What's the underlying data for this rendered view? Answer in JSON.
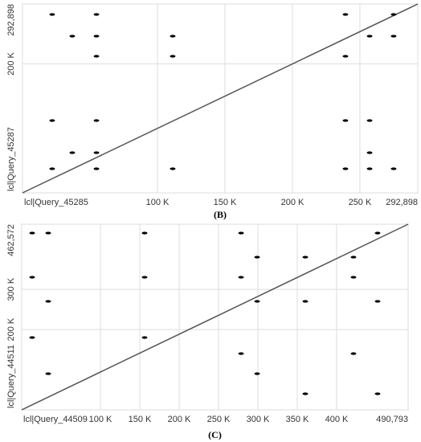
{
  "chart_data": [
    {
      "type": "scatter",
      "caption": "(B)",
      "xlim": [
        0,
        292898
      ],
      "ylim": [
        0,
        292898
      ],
      "xticks": [
        {
          "value": 0,
          "label": "lcl|Query_45285"
        },
        {
          "value": 100000,
          "label": "100 K"
        },
        {
          "value": 150000,
          "label": "150 K"
        },
        {
          "value": 200000,
          "label": "200 K"
        },
        {
          "value": 250000,
          "label": "250 K"
        },
        {
          "value": 292898,
          "label": "292,898"
        }
      ],
      "yticks": [
        {
          "value": 0,
          "label": "lcl|Query_45287"
        },
        {
          "value": 200000,
          "label": "200 K"
        },
        {
          "value": 292898,
          "label": "292,898"
        }
      ],
      "grid": true,
      "diagonal": {
        "color": "#555555",
        "x": [
          0,
          292898
        ],
        "y": [
          0,
          292898
        ]
      },
      "points": {
        "color": "#000000",
        "x": [
          22000,
          54800,
          36900,
          54800,
          111300,
          239300,
          257200,
          275000,
          275000,
          22000,
          54800,
          239300,
          257200,
          22000,
          54800,
          111300,
          239300,
          257200,
          275000,
          36900,
          54800,
          257200,
          111300,
          54800,
          239300
        ],
        "y": [
          276700,
          276700,
          243000,
          243000,
          243000,
          276700,
          243000,
          276700,
          243000,
          112200,
          112200,
          112200,
          112200,
          37400,
          37400,
          37400,
          37400,
          37400,
          37400,
          62300,
          62300,
          62300,
          211900,
          211900,
          211900
        ]
      }
    },
    {
      "type": "scatter",
      "caption": "(C)",
      "xlim": [
        0,
        490793
      ],
      "ylim": [
        0,
        462572
      ],
      "xticks": [
        {
          "value": 0,
          "label": "lcl|Query_44509"
        },
        {
          "value": 100000,
          "label": "100 K"
        },
        {
          "value": 150000,
          "label": "150 K"
        },
        {
          "value": 200000,
          "label": "200 K"
        },
        {
          "value": 250000,
          "label": "250 K"
        },
        {
          "value": 300000,
          "label": "300 K"
        },
        {
          "value": 350000,
          "label": "350 K"
        },
        {
          "value": 400000,
          "label": "400 K"
        },
        {
          "value": 490793,
          "label": "490,793"
        }
      ],
      "yticks": [
        {
          "value": 0,
          "label": "lcl|Query_44511"
        },
        {
          "value": 200000,
          "label": "200 K"
        },
        {
          "value": 300000,
          "label": "300 K"
        },
        {
          "value": 462572,
          "label": "462,572"
        }
      ],
      "grid": true,
      "diagonal": {
        "color": "#555555",
        "x": [
          0,
          490793
        ],
        "y": [
          0,
          462572
        ]
      },
      "points": {
        "color": "#000000",
        "x": [
          13300,
          33700,
          156100,
          278600,
          299000,
          360200,
          421400,
          452000,
          13300,
          156100,
          278600,
          421400,
          33700,
          299000,
          360200,
          452000,
          13300,
          156100,
          278600,
          421400,
          33700,
          299000,
          360200,
          452000
        ],
        "y": [
          440500,
          440500,
          440500,
          440500,
          380500,
          380500,
          380500,
          440500,
          330400,
          330400,
          330400,
          330400,
          270300,
          270300,
          270300,
          270300,
          180200,
          180200,
          140200,
          140200,
          90100,
          90100,
          40000,
          40000
        ]
      }
    }
  ]
}
